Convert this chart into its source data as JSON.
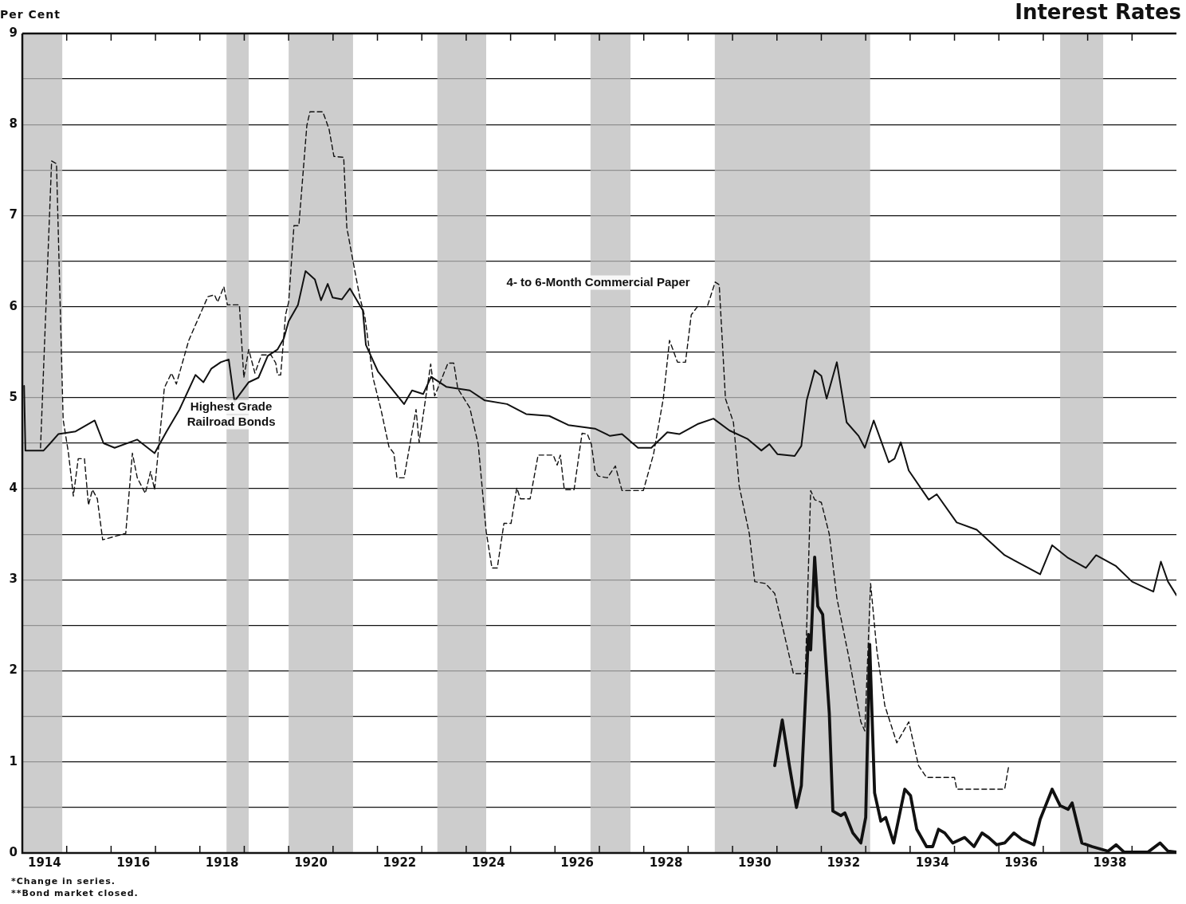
{
  "chart_data": {
    "type": "line",
    "title": "Interest Rates",
    "ylabel": "Per Cent",
    "annotations": [
      "*Change in series.",
      "**Bond market closed."
    ],
    "xlim": [
      1914,
      1940
    ],
    "xticks": [
      {
        "value": 1914.5,
        "label": "1914"
      },
      {
        "value": 1915,
        "label": null
      },
      {
        "value": 1916,
        "label": null
      },
      {
        "value": 1916.5,
        "label": "1916"
      },
      {
        "value": 1917,
        "label": null
      },
      {
        "value": 1918,
        "label": null
      },
      {
        "value": 1918.5,
        "label": "1918"
      },
      {
        "value": 1919,
        "label": null
      },
      {
        "value": 1920,
        "label": null
      },
      {
        "value": 1920.5,
        "label": "1920"
      },
      {
        "value": 1921,
        "label": null
      },
      {
        "value": 1922,
        "label": null
      },
      {
        "value": 1922.5,
        "label": "1922"
      },
      {
        "value": 1923,
        "label": null
      },
      {
        "value": 1924,
        "label": null
      },
      {
        "value": 1924.5,
        "label": "1924"
      },
      {
        "value": 1925,
        "label": null
      },
      {
        "value": 1926,
        "label": null
      },
      {
        "value": 1926.5,
        "label": "1926"
      },
      {
        "value": 1927,
        "label": null
      },
      {
        "value": 1928,
        "label": null
      },
      {
        "value": 1928.5,
        "label": "1928"
      },
      {
        "value": 1929,
        "label": null
      },
      {
        "value": 1930,
        "label": null
      },
      {
        "value": 1930.5,
        "label": "1930"
      },
      {
        "value": 1931,
        "label": null
      },
      {
        "value": 1932,
        "label": null
      },
      {
        "value": 1932.5,
        "label": "1932"
      },
      {
        "value": 1933,
        "label": null
      },
      {
        "value": 1934,
        "label": null
      },
      {
        "value": 1934.5,
        "label": "1934"
      },
      {
        "value": 1935,
        "label": null
      },
      {
        "value": 1936,
        "label": null
      },
      {
        "value": 1936.5,
        "label": "1936"
      },
      {
        "value": 1937,
        "label": null
      },
      {
        "value": 1938,
        "label": null
      },
      {
        "value": 1938.5,
        "label": "1938"
      },
      {
        "value": 1939,
        "label": null
      }
    ],
    "ylim": [
      0,
      9
    ],
    "yticks": [
      0,
      {
        "value": 0.5,
        "label": null
      },
      1,
      {
        "value": 1.5,
        "label": null
      },
      2,
      {
        "value": 2.5,
        "label": null
      },
      3,
      {
        "value": 3.5,
        "label": null
      },
      4,
      {
        "value": 4.5,
        "label": null
      },
      5,
      {
        "value": 5.5,
        "label": null
      },
      6,
      {
        "value": 6.5,
        "label": null
      },
      7,
      {
        "value": 7.5,
        "label": null
      },
      8,
      {
        "value": 8.5,
        "label": null
      },
      9
    ],
    "grid": "y",
    "marker": "none",
    "bands": [
      {
        "axis": "x",
        "from": 1914,
        "to": 1914.9,
        "color": "#bcbcbc"
      },
      {
        "axis": "x",
        "from": 1918.6,
        "to": 1919.1,
        "color": "#bcbcbc"
      },
      {
        "axis": "x",
        "from": 1920.0,
        "to": 1921.45,
        "color": "#bcbcbc"
      },
      {
        "axis": "x",
        "from": 1923.35,
        "to": 1924.45,
        "color": "#bcbcbc"
      },
      {
        "axis": "x",
        "from": 1926.8,
        "to": 1927.7,
        "color": "#bcbcbc"
      },
      {
        "axis": "x",
        "from": 1929.6,
        "to": 1933.1,
        "color": "#bcbcbc"
      },
      {
        "axis": "x",
        "from": 1937.38,
        "to": 1938.35,
        "color": "#bcbcbc"
      }
    ],
    "series": [
      {
        "name": "Highest Grade Railroad Bonds",
        "color": "#111111",
        "line_style": "solid",
        "x": [
          1914.04,
          1914.07,
          1914.48,
          1914.63,
          1914.81,
          1915.2,
          1915.63,
          1915.83,
          1916.08,
          1916.59,
          1916.98,
          1917.25,
          1917.54,
          1917.9,
          1918.08,
          1918.26,
          1918.47,
          1918.65,
          1918.78,
          1919.1,
          1919.32,
          1919.53,
          1919.75,
          1919.89,
          1920.0,
          1920.21,
          1920.38,
          1920.59,
          1920.73,
          1920.88,
          1920.99,
          1921.2,
          1921.38,
          1921.67,
          1921.74,
          1922.01,
          1922.6,
          1922.78,
          1923.03,
          1923.21,
          1923.55,
          1924.08,
          1924.42,
          1924.92,
          1925.35,
          1925.87,
          1926.3,
          1926.9,
          1927.24,
          1927.51,
          1927.87,
          1928.17,
          1928.53,
          1928.8,
          1929.21,
          1929.57,
          1929.93,
          1930.33,
          1930.65,
          1930.83,
          1931.01,
          1931.4,
          1931.55,
          1931.67,
          1931.85,
          1932.0,
          1932.12,
          1932.35,
          1932.57,
          1932.84,
          1932.98,
          1933.18,
          1933.52,
          1933.65,
          1933.79,
          1933.97,
          1934.42,
          1934.6,
          1935.05,
          1935.5,
          1936.13,
          1936.93,
          1937.2,
          1937.56,
          1937.96,
          1938.19,
          1938.64,
          1939.0,
          1939.48,
          1939.65,
          1939.81,
          1940.0
        ],
        "values": [
          5.13,
          4.42,
          4.42,
          4.5,
          4.6,
          4.63,
          4.75,
          4.5,
          4.45,
          4.54,
          4.39,
          4.63,
          4.87,
          5.25,
          5.17,
          5.32,
          5.39,
          5.42,
          4.96,
          5.17,
          5.22,
          5.46,
          5.53,
          5.65,
          5.84,
          6.02,
          6.39,
          6.3,
          6.07,
          6.25,
          6.1,
          6.08,
          6.2,
          5.96,
          5.58,
          5.29,
          4.93,
          5.08,
          5.04,
          5.23,
          5.12,
          5.08,
          4.97,
          4.93,
          4.82,
          4.8,
          4.7,
          4.66,
          4.58,
          4.6,
          4.45,
          4.45,
          4.62,
          4.6,
          4.71,
          4.77,
          4.64,
          4.55,
          4.42,
          4.49,
          4.38,
          4.36,
          4.47,
          4.97,
          5.3,
          5.24,
          4.99,
          5.39,
          4.73,
          4.58,
          4.45,
          4.75,
          4.29,
          4.33,
          4.51,
          4.2,
          3.88,
          3.94,
          3.63,
          3.55,
          3.27,
          3.06,
          3.38,
          3.24,
          3.13,
          3.27,
          3.15,
          2.98,
          2.87,
          3.2,
          2.98,
          2.83
        ]
      },
      {
        "name": "4- to 6-Month Commercial Paper",
        "color": "#111111",
        "line_style": "dashed",
        "x": [
          1914.41,
          1914.66,
          1914.77,
          1914.92,
          1915.04,
          1915.15,
          1915.26,
          1915.4,
          1915.49,
          1915.58,
          1915.69,
          1915.81,
          1916.33,
          1916.48,
          1916.59,
          1916.77,
          1916.89,
          1916.98,
          1917.2,
          1917.36,
          1917.47,
          1917.75,
          1918.18,
          1918.33,
          1918.4,
          1918.54,
          1918.62,
          1918.89,
          1918.99,
          1919.1,
          1919.24,
          1919.39,
          1919.6,
          1919.71,
          1919.75,
          1919.82,
          1919.93,
          1920.0,
          1920.12,
          1920.23,
          1920.41,
          1920.48,
          1920.77,
          1920.91,
          1921.02,
          1921.24,
          1921.31,
          1921.45,
          1921.6,
          1921.72,
          1921.9,
          1922.08,
          1922.26,
          1922.37,
          1922.44,
          1922.6,
          1922.87,
          1922.94,
          1923.2,
          1923.29,
          1923.59,
          1923.72,
          1923.81,
          1924.08,
          1924.27,
          1924.45,
          1924.58,
          1924.7,
          1924.85,
          1925.01,
          1925.14,
          1925.22,
          1925.44,
          1925.62,
          1925.96,
          1926.05,
          1926.12,
          1926.21,
          1926.43,
          1926.61,
          1926.73,
          1926.82,
          1926.9,
          1926.97,
          1927.18,
          1927.36,
          1927.51,
          1927.99,
          1928.22,
          1928.44,
          1928.58,
          1928.76,
          1928.94,
          1929.07,
          1929.21,
          1929.43,
          1929.61,
          1929.7,
          1929.84,
          1930.02,
          1930.15,
          1930.38,
          1930.5,
          1930.74,
          1930.95,
          1931.1,
          1931.37,
          1931.64,
          1931.76,
          1931.85,
          1932.0,
          1932.18,
          1932.35,
          1932.62,
          1932.89,
          1932.98,
          1933.11,
          1933.25,
          1933.43,
          1933.7,
          1933.97,
          1934.19,
          1934.37,
          1935.0,
          1935.05,
          1936.13,
          1936.22
        ],
        "values": [
          4.45,
          7.6,
          7.57,
          4.76,
          4.39,
          3.92,
          4.33,
          4.33,
          3.82,
          3.99,
          3.89,
          3.44,
          3.51,
          4.39,
          4.12,
          3.95,
          4.19,
          3.99,
          5.11,
          5.27,
          5.15,
          5.63,
          6.11,
          6.13,
          6.05,
          6.22,
          6.02,
          6.02,
          5.22,
          5.53,
          5.27,
          5.47,
          5.47,
          5.38,
          5.25,
          5.25,
          5.91,
          6.05,
          6.89,
          6.89,
          7.99,
          8.14,
          8.14,
          7.95,
          7.65,
          7.64,
          6.87,
          6.5,
          6.11,
          5.88,
          5.22,
          4.87,
          4.46,
          4.39,
          4.12,
          4.12,
          4.87,
          4.51,
          5.37,
          5.02,
          5.38,
          5.38,
          5.1,
          4.89,
          4.49,
          3.53,
          3.13,
          3.13,
          3.62,
          3.62,
          4.01,
          3.89,
          3.89,
          4.37,
          4.37,
          4.26,
          4.37,
          3.99,
          3.99,
          4.61,
          4.6,
          4.49,
          4.2,
          4.14,
          4.12,
          4.25,
          3.98,
          3.98,
          4.38,
          4.99,
          5.63,
          5.39,
          5.39,
          5.91,
          6.0,
          6.0,
          6.27,
          6.24,
          4.99,
          4.73,
          4.03,
          3.5,
          2.98,
          2.96,
          2.85,
          2.54,
          1.97,
          1.97,
          3.98,
          3.88,
          3.85,
          3.5,
          2.8,
          2.15,
          1.44,
          1.34,
          2.96,
          2.23,
          1.62,
          1.21,
          1.44,
          0.96,
          0.83,
          0.83,
          0.7,
          0.7,
          0.95
        ]
      },
      {
        "color": "#111111",
        "line_style": "solid",
        "x": [
          1930.95,
          1931.12,
          1931.28,
          1931.44,
          1931.55,
          1931.71,
          1931.76,
          1931.85,
          1931.92,
          1932.03,
          1932.18,
          1932.26,
          1932.44,
          1932.53,
          1932.71,
          1932.89,
          1933.0,
          1933.09,
          1933.2,
          1933.34,
          1933.45,
          1933.63,
          1933.88,
          1934.01,
          1934.15,
          1934.37,
          1934.51,
          1934.64,
          1934.78,
          1934.96,
          1935.23,
          1935.44,
          1935.62,
          1935.77,
          1935.95,
          1936.13,
          1936.34,
          1936.52,
          1936.79,
          1936.93,
          1937.2,
          1937.38,
          1937.56,
          1937.65,
          1937.87,
          1938.1,
          1938.46,
          1938.64,
          1938.82,
          1939.36,
          1939.63,
          1939.81,
          1940.0
        ],
        "values": [
          0.96,
          1.46,
          0.96,
          0.5,
          0.74,
          2.4,
          2.23,
          3.25,
          2.71,
          2.62,
          1.53,
          0.46,
          0.41,
          0.44,
          0.22,
          0.11,
          0.39,
          2.29,
          0.66,
          0.35,
          0.39,
          0.11,
          0.7,
          0.63,
          0.26,
          0.07,
          0.07,
          0.26,
          0.22,
          0.11,
          0.17,
          0.07,
          0.22,
          0.17,
          0.09,
          0.11,
          0.22,
          0.15,
          0.09,
          0.37,
          0.7,
          0.52,
          0.48,
          0.55,
          0.11,
          0.07,
          0.02,
          0.09,
          0.01,
          0.01,
          0.11,
          0.02,
          0.01
        ]
      }
    ]
  }
}
